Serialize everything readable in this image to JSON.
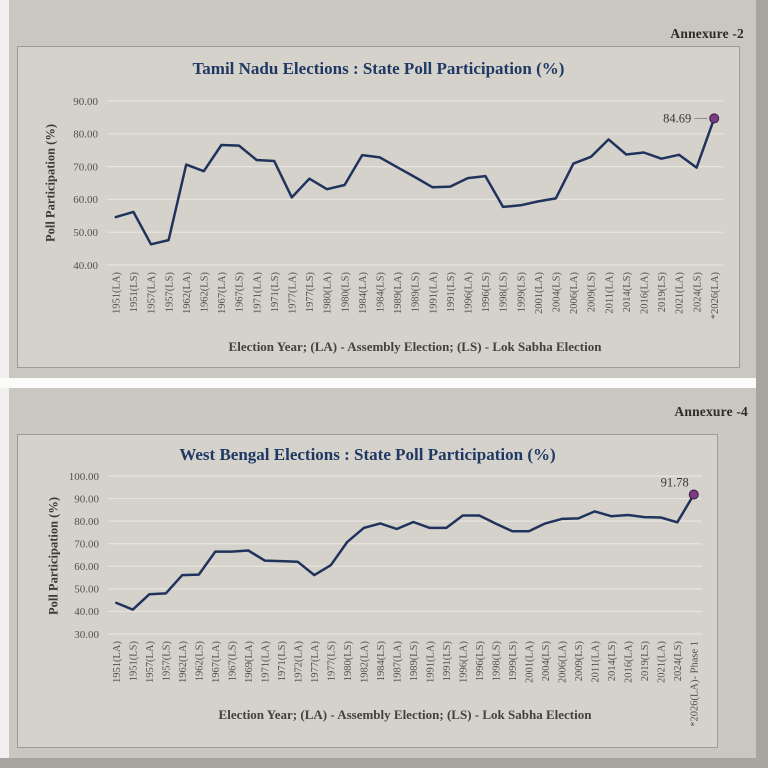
{
  "colors": {
    "line": "#20335c",
    "marker_fill": "#7b3d85",
    "marker_stroke": "#3a1c45",
    "grid": "#e7e4de",
    "tick_label": "#55514a",
    "end_label": "#3a3730",
    "leader": "#8d8a83",
    "panel_bg": "#d5d2cb",
    "title": "#1f3864"
  },
  "chart_data": [
    {
      "annexure": "Annexure -2",
      "type": "line",
      "title": "Tamil Nadu Elections : State Poll Participation (%)",
      "ylabel": "Poll Participation (%)",
      "xlabel": "Election Year; (LA) - Assembly Election; (LS) - Lok Sabha Election",
      "ylim": [
        40,
        90
      ],
      "ytick_step": 10,
      "grid": "on",
      "end_label": "84.69",
      "categories": [
        "1951(LA)",
        "1951(LS)",
        "1957(LA)",
        "1957(LS)",
        "1962(LA)",
        "1962(LS)",
        "1967(LA)",
        "1967(LS)",
        "1971(LA)",
        "1971(LS)",
        "1977(LA)",
        "1977(LS)",
        "1980(LA)",
        "1980(LS)",
        "1984(LA)",
        "1984(LS)",
        "1989(LA)",
        "1989(LS)",
        "1991(LA)",
        "1991(LS)",
        "1996(LA)",
        "1996(LS)",
        "1998(LS)",
        "1999(LS)",
        "2001(LA)",
        "2004(LS)",
        "2006(LA)",
        "2009(LS)",
        "2011(LA)",
        "2014(LS)",
        "2016(LA)",
        "2019(LS)",
        "2021(LA)",
        "2024(LS)",
        "*2026(LA)"
      ],
      "values": [
        54.6,
        56.2,
        46.3,
        47.6,
        70.6,
        68.6,
        76.6,
        76.4,
        72.0,
        71.7,
        60.6,
        66.3,
        63.1,
        64.4,
        73.5,
        72.8,
        69.8,
        66.8,
        63.7,
        63.9,
        66.5,
        67.1,
        57.7,
        58.2,
        59.4,
        60.3,
        70.9,
        73.0,
        78.3,
        73.7,
        74.3,
        72.4,
        73.6,
        69.7,
        84.69
      ]
    },
    {
      "annexure": "Annexure -4",
      "type": "line",
      "title": "West Bengal Elections : State Poll Participation (%)",
      "ylabel": "Poll Participation (%)",
      "xlabel": "Election Year; (LA) - Assembly Election; (LS) - Lok Sabha Election",
      "ylim": [
        30,
        100
      ],
      "ytick_step": 10,
      "grid": "on",
      "end_label": "91.78",
      "categories": [
        "1951(LA)",
        "1951(LS)",
        "1957(LA)",
        "1957(LS)",
        "1962(LA)",
        "1962(LS)",
        "1967(LA)",
        "1967(LS)",
        "1969(LA)",
        "1971(LA)",
        "1971(LS)",
        "1972(LA)",
        "1977(LA)",
        "1977(LS)",
        "1980(LS)",
        "1982(LA)",
        "1984(LS)",
        "1987(LA)",
        "1989(LS)",
        "1991(LA)",
        "1991(LS)",
        "1996(LA)",
        "1996(LS)",
        "1998(LS)",
        "1999(LS)",
        "2001(LA)",
        "2004(LS)",
        "2006(LA)",
        "2009(LS)",
        "2011(LA)",
        "2014(LS)",
        "2016(LA)",
        "2019(LS)",
        "2021(LA)",
        "2024(LS)",
        "*2026(LA)- Phase 1"
      ],
      "values": [
        43.8,
        40.8,
        47.6,
        48.0,
        56.1,
        56.3,
        66.5,
        66.5,
        67.0,
        62.5,
        62.3,
        62.0,
        56.1,
        60.5,
        70.8,
        77.0,
        79.0,
        76.5,
        79.6,
        77.0,
        77.0,
        82.5,
        82.5,
        78.9,
        75.5,
        75.5,
        79.0,
        81.0,
        81.2,
        84.3,
        82.2,
        82.7,
        81.8,
        81.6,
        79.5,
        91.78
      ]
    }
  ]
}
